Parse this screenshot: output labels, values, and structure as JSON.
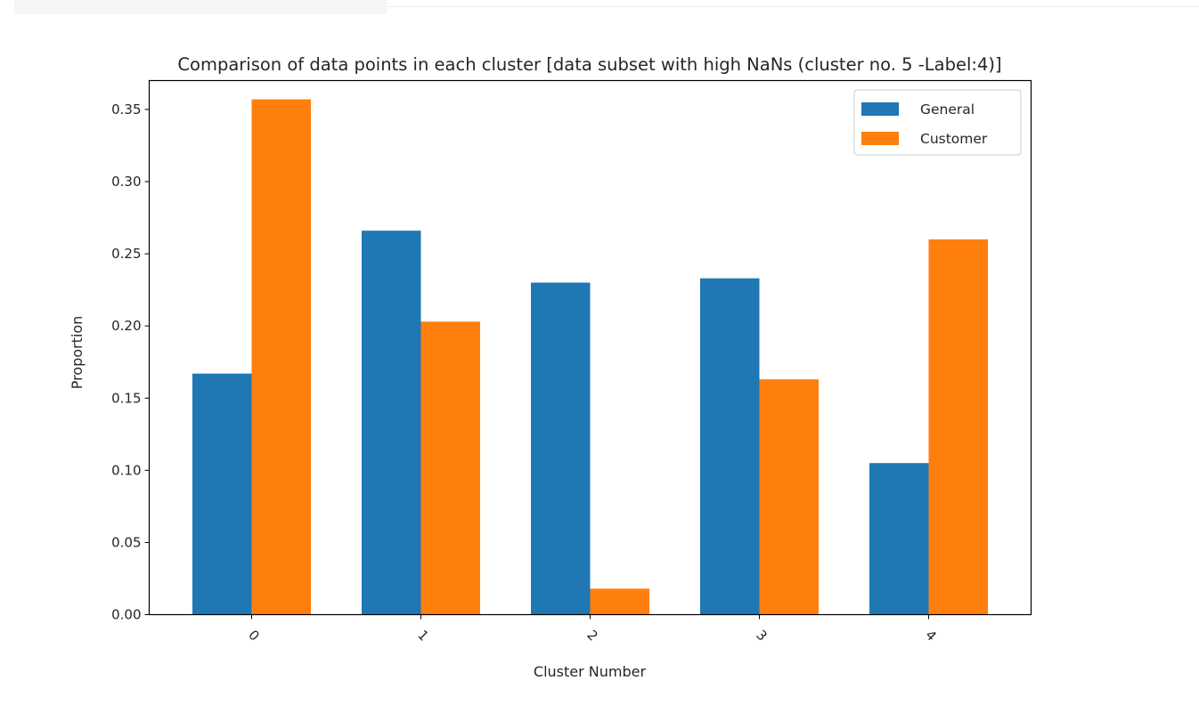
{
  "chart_data": {
    "type": "bar",
    "title": "Comparison of data points in each cluster [data subset with high NaNs (cluster no. 5 -Label:4)]",
    "xlabel": "Cluster Number",
    "ylabel": "Proportion",
    "categories": [
      "0",
      "1",
      "2",
      "3",
      "4"
    ],
    "series": [
      {
        "name": "General",
        "values": [
          0.167,
          0.266,
          0.23,
          0.233,
          0.105
        ],
        "color": "#1f77b4"
      },
      {
        "name": "Customer",
        "values": [
          0.357,
          0.203,
          0.018,
          0.163,
          0.26
        ],
        "color": "#ff7f0e"
      }
    ],
    "ylim": [
      0,
      0.37
    ],
    "yticks": [
      0.0,
      0.05,
      0.1,
      0.15,
      0.2,
      0.25,
      0.3,
      0.35
    ],
    "ytick_labels": [
      "0.00",
      "0.05",
      "0.10",
      "0.15",
      "0.20",
      "0.25",
      "0.30",
      "0.35"
    ],
    "grid": false,
    "legend_position": "top-right",
    "xtick_rotation": 45
  }
}
